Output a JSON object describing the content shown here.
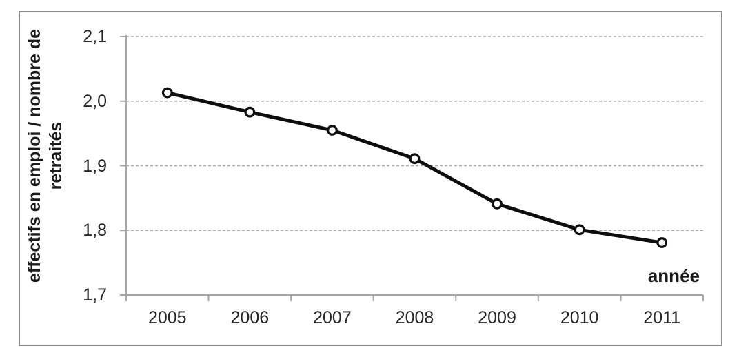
{
  "chart_data": {
    "type": "line",
    "title": "",
    "categories": [
      "2005",
      "2006",
      "2007",
      "2008",
      "2009",
      "2010",
      "2011"
    ],
    "series": [
      {
        "name": "effectifs en emploi / nombre de retraités",
        "values": [
          2.013,
          1.983,
          1.955,
          1.911,
          1.841,
          1.801,
          1.781
        ]
      }
    ],
    "xlabel": "année",
    "ylabel": "effectifs en emploi / nombre de retraités",
    "ylabel_lines": [
      "effectifs en emploi / nombre de",
      "retraités"
    ],
    "ylim": [
      1.7,
      2.1
    ],
    "ytick_step": 0.1,
    "ytick_labels": [
      "1,7",
      "1,8",
      "1,9",
      "2,0",
      "2,1"
    ],
    "decimal_separator": ",",
    "grid": {
      "horizontal": true,
      "style": "dashed"
    },
    "legend": "none",
    "marker": "circle-open",
    "line_style": "solid-thick"
  },
  "styles": {
    "background": "#ffffff",
    "frame_border_color": "#8c8c8c",
    "axis_color": "#a6a6a6",
    "grid_color": "#a9a9a9",
    "line_color": "#0d0d0d",
    "marker_fill": "#ffffff",
    "marker_stroke": "#0d0d0d",
    "tick_label_color": "#262626",
    "axis_title_color": "#1a1a1a"
  }
}
